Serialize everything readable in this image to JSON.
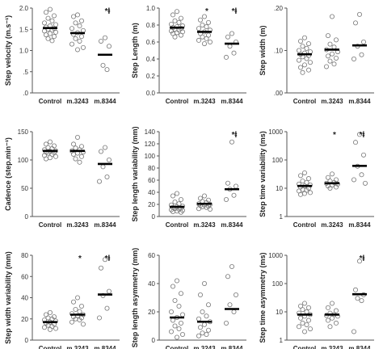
{
  "chart_data": [
    {
      "type": "scatter",
      "ylabel": "Step velocity (m.s⁻¹)",
      "scale": "linear",
      "ylim": [
        0,
        2.0
      ],
      "yticks": [
        "2.0",
        "1.5",
        "1.0",
        ".5",
        ".0"
      ],
      "tick_values": [
        2.0,
        1.5,
        1.0,
        0.5,
        0.0
      ],
      "categories": [
        "Control",
        "m.3243",
        "m.8344"
      ],
      "markers": [
        "",
        "",
        "*ⱡ"
      ],
      "means": [
        1.53,
        1.41,
        0.9
      ],
      "series": [
        [
          1.97,
          1.9,
          1.82,
          1.76,
          1.7,
          1.65,
          1.61,
          1.58,
          1.55,
          1.52,
          1.5,
          1.48,
          1.46,
          1.43,
          1.4,
          1.37,
          1.33,
          1.28,
          1.23
        ],
        [
          1.84,
          1.8,
          1.7,
          1.65,
          1.58,
          1.52,
          1.47,
          1.42,
          1.38,
          1.33,
          1.28,
          1.22,
          1.15,
          1.07,
          1.02
        ],
        [
          1.3,
          1.22,
          1.1,
          0.65,
          0.55
        ]
      ]
    },
    {
      "type": "scatter",
      "ylabel": "Step Length (m)",
      "scale": "linear",
      "ylim": [
        0,
        1.0
      ],
      "yticks": [
        "1.0",
        "0.8",
        "0.6",
        "0.4",
        "0.2",
        "0.0"
      ],
      "tick_values": [
        1.0,
        0.8,
        0.6,
        0.4,
        0.2,
        0.0
      ],
      "categories": [
        "Control",
        "m.3243",
        "m.8344"
      ],
      "markers": [
        "",
        "*",
        "*ⱡ"
      ],
      "means": [
        0.77,
        0.72,
        0.58
      ],
      "series": [
        [
          0.96,
          0.92,
          0.88,
          0.85,
          0.83,
          0.81,
          0.79,
          0.78,
          0.77,
          0.76,
          0.75,
          0.74,
          0.73,
          0.72,
          0.71,
          0.7,
          0.68,
          0.66
        ],
        [
          0.9,
          0.86,
          0.83,
          0.8,
          0.78,
          0.76,
          0.74,
          0.72,
          0.7,
          0.68,
          0.66,
          0.64,
          0.62,
          0.6,
          0.58
        ],
        [
          0.7,
          0.66,
          0.6,
          0.55,
          0.47,
          0.42
        ]
      ]
    },
    {
      "type": "scatter",
      "ylabel": "Step width (m)",
      "scale": "linear",
      "ylim": [
        0,
        0.2
      ],
      "yticks": [
        ".20",
        ".10",
        ".00"
      ],
      "tick_values": [
        0.2,
        0.1,
        0.0
      ],
      "categories": [
        "Control",
        "m.3243",
        "m.8344"
      ],
      "markers": [
        "",
        "",
        ""
      ],
      "means": [
        0.091,
        0.102,
        0.112
      ],
      "series": [
        [
          0.13,
          0.122,
          0.116,
          0.11,
          0.105,
          0.1,
          0.097,
          0.094,
          0.091,
          0.088,
          0.085,
          0.081,
          0.077,
          0.072,
          0.066,
          0.06,
          0.054,
          0.048
        ],
        [
          0.18,
          0.135,
          0.125,
          0.115,
          0.108,
          0.102,
          0.097,
          0.092,
          0.087,
          0.082,
          0.075,
          0.068,
          0.062
        ],
        [
          0.185,
          0.165,
          0.12,
          0.11,
          0.09,
          0.08
        ]
      ]
    },
    {
      "type": "scatter",
      "ylabel": "Cadence (step.min⁻¹)",
      "scale": "linear",
      "ylim": [
        0,
        150
      ],
      "yticks": [
        "150",
        "100",
        "50",
        "0"
      ],
      "tick_values": [
        150,
        100,
        50,
        0
      ],
      "categories": [
        "Control",
        "m.3243",
        "m.8344"
      ],
      "markers": [
        "",
        "",
        ""
      ],
      "means": [
        116,
        116,
        93
      ],
      "series": [
        [
          132,
          128,
          125,
          122,
          120,
          118,
          116,
          115,
          114,
          113,
          112,
          110,
          108,
          106,
          104,
          102
        ],
        [
          140,
          128,
          124,
          121,
          118,
          116,
          114,
          112,
          110,
          106,
          102,
          96
        ],
        [
          122,
          115,
          100,
          88,
          70,
          62
        ]
      ]
    },
    {
      "type": "scatter",
      "ylabel": "Step length variability (mm)",
      "scale": "linear",
      "ylim": [
        0,
        140
      ],
      "yticks": [
        "140",
        "120",
        "100",
        "80",
        "60",
        "40",
        "20",
        "0"
      ],
      "tick_values": [
        140,
        120,
        100,
        80,
        60,
        40,
        20,
        0
      ],
      "categories": [
        "Control",
        "m.3243",
        "m.8344"
      ],
      "markers": [
        "",
        "",
        "*ⱡ"
      ],
      "means": [
        16,
        21,
        45
      ],
      "series": [
        [
          38,
          34,
          28,
          24,
          21,
          19,
          17,
          16,
          15,
          14,
          13,
          12,
          11,
          10,
          9,
          8,
          7
        ],
        [
          34,
          30,
          27,
          25,
          23,
          21,
          20,
          19,
          18,
          17,
          16,
          15,
          13,
          12
        ],
        [
          123,
          55,
          50,
          45,
          35,
          28
        ]
      ]
    },
    {
      "type": "scatter",
      "ylabel": "Step time variability (ms)",
      "scale": "log",
      "ylim": [
        1,
        1000
      ],
      "yticks": [
        "1000",
        "100",
        "10",
        "1"
      ],
      "tick_values": [
        1000,
        100,
        10,
        1
      ],
      "categories": [
        "Control",
        "m.3243",
        "m.8344"
      ],
      "markers": [
        "",
        "*",
        "*ⱡ"
      ],
      "means": [
        12,
        15,
        62
      ],
      "series": [
        [
          35,
          28,
          22,
          18,
          16,
          14,
          13,
          12,
          11,
          10,
          9,
          8.5,
          8,
          7,
          6.5,
          6
        ],
        [
          32,
          24,
          20,
          18,
          16,
          15,
          14,
          13,
          12,
          11,
          10
        ],
        [
          800,
          420,
          150,
          60,
          30,
          20,
          15
        ]
      ]
    },
    {
      "type": "scatter",
      "ylabel": "Step width variability (mm)",
      "scale": "linear",
      "ylim": [
        0,
        80
      ],
      "yticks": [
        "80",
        "60",
        "40",
        "20",
        "0"
      ],
      "tick_values": [
        80,
        60,
        40,
        20,
        0
      ],
      "categories": [
        "Control",
        "m.3243",
        "m.8344"
      ],
      "markers": [
        "",
        "*",
        "*ⱡ"
      ],
      "means": [
        17,
        24,
        43
      ],
      "series": [
        [
          26,
          24,
          22,
          21,
          20,
          19,
          18,
          17,
          16,
          15,
          14,
          13,
          12,
          11,
          10
        ],
        [
          40,
          36,
          32,
          29,
          27,
          25,
          24,
          23,
          22,
          21,
          20,
          19,
          17,
          15
        ],
        [
          76,
          68,
          46,
          42,
          30,
          21
        ]
      ]
    },
    {
      "type": "scatter",
      "ylabel": "Step length asymmetry (mm)",
      "scale": "linear",
      "ylim": [
        0,
        60
      ],
      "yticks": [
        "60",
        "40",
        "20",
        "0"
      ],
      "tick_values": [
        60,
        40,
        20,
        0
      ],
      "categories": [
        "Control",
        "m.3243",
        "m.8344"
      ],
      "markers": [
        "",
        "",
        ""
      ],
      "means": [
        16,
        13,
        22
      ],
      "series": [
        [
          42,
          38,
          33,
          28,
          24,
          20,
          18,
          16,
          14,
          12,
          10,
          8,
          6,
          4,
          2
        ],
        [
          40,
          32,
          25,
          20,
          17,
          15,
          13,
          11,
          9,
          7,
          5,
          4,
          3
        ],
        [
          52,
          45,
          32,
          25,
          20,
          12
        ]
      ]
    },
    {
      "type": "scatter",
      "ylabel": "Step time asymmetry (ms)",
      "scale": "log",
      "ylim": [
        1,
        1000
      ],
      "yticks": [
        "1000",
        "100",
        "10",
        "1"
      ],
      "tick_values": [
        1000,
        100,
        10,
        1
      ],
      "categories": [
        "Control",
        "m.3243",
        "m.8344"
      ],
      "markers": [
        "",
        "",
        "*ⱡ"
      ],
      "means": [
        8,
        8,
        42
      ],
      "series": [
        [
          20,
          16,
          14,
          12,
          10,
          9,
          8,
          7,
          6,
          5,
          4,
          3.5,
          3,
          2.5,
          2
        ],
        [
          20,
          14,
          11,
          9,
          8,
          7.5,
          7,
          6,
          5,
          4,
          3
        ],
        [
          620,
          60,
          40,
          30,
          25,
          2
        ]
      ]
    }
  ]
}
